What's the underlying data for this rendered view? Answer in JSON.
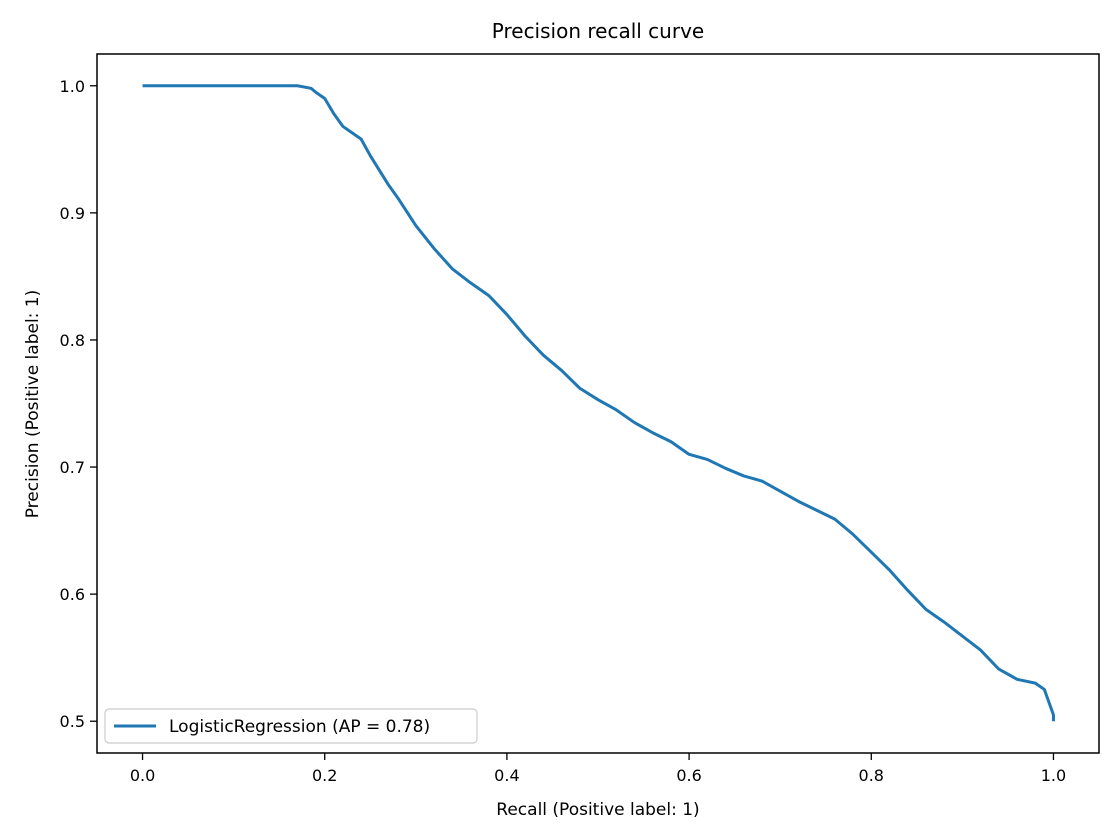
{
  "chart_data": {
    "type": "line",
    "title": "Precision recall curve",
    "xlabel": "Recall (Positive label: 1)",
    "ylabel": "Precision (Positive label: 1)",
    "xlim": [
      -0.05,
      1.05
    ],
    "ylim": [
      0.475,
      1.025
    ],
    "xticks": [
      0.0,
      0.2,
      0.4,
      0.6,
      0.8,
      1.0
    ],
    "xtick_labels": [
      "0.0",
      "0.2",
      "0.4",
      "0.6",
      "0.8",
      "1.0"
    ],
    "yticks": [
      0.5,
      0.6,
      0.7,
      0.8,
      0.9,
      1.0
    ],
    "ytick_labels": [
      "0.5",
      "0.6",
      "0.7",
      "0.8",
      "0.9",
      "1.0"
    ],
    "grid": false,
    "legend_position": "lower-left",
    "series": [
      {
        "name": "LogisticRegression (AP = 0.78)",
        "color": "#1f77b4",
        "x": [
          0.0,
          0.17,
          0.185,
          0.19,
          0.2,
          0.21,
          0.22,
          0.24,
          0.25,
          0.27,
          0.28,
          0.3,
          0.32,
          0.34,
          0.36,
          0.38,
          0.4,
          0.42,
          0.44,
          0.46,
          0.48,
          0.5,
          0.52,
          0.54,
          0.56,
          0.58,
          0.6,
          0.62,
          0.64,
          0.66,
          0.68,
          0.7,
          0.72,
          0.74,
          0.76,
          0.78,
          0.8,
          0.82,
          0.84,
          0.86,
          0.88,
          0.9,
          0.92,
          0.94,
          0.96,
          0.98,
          0.99,
          0.995,
          1.0,
          1.0
        ],
        "y": [
          1.0,
          1.0,
          0.998,
          0.995,
          0.99,
          0.978,
          0.968,
          0.958,
          0.945,
          0.922,
          0.912,
          0.89,
          0.872,
          0.856,
          0.845,
          0.835,
          0.82,
          0.803,
          0.788,
          0.776,
          0.762,
          0.753,
          0.745,
          0.735,
          0.727,
          0.72,
          0.71,
          0.706,
          0.699,
          0.693,
          0.689,
          0.681,
          0.673,
          0.666,
          0.659,
          0.647,
          0.633,
          0.619,
          0.603,
          0.588,
          0.578,
          0.567,
          0.556,
          0.541,
          0.533,
          0.53,
          0.525,
          0.515,
          0.505,
          0.5
        ]
      }
    ]
  }
}
